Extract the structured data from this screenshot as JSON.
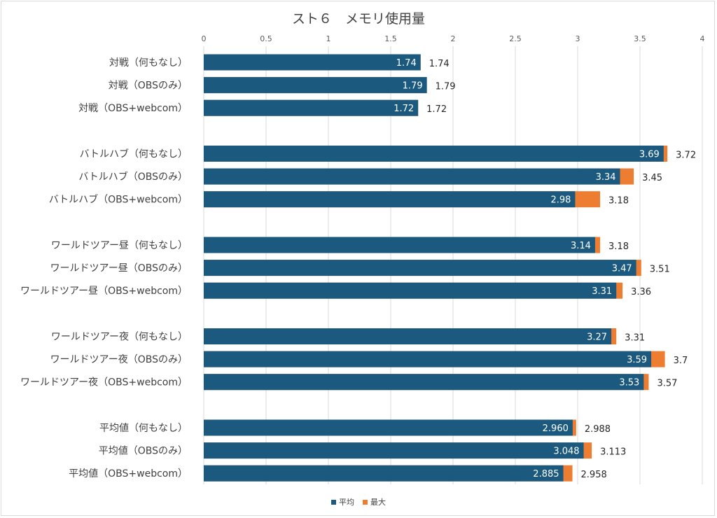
{
  "colors": {
    "avg": "#1b5a7e",
    "max": "#ed7d31",
    "grid": "#d9d9d9"
  },
  "chart_data": {
    "type": "bar",
    "orientation": "horizontal",
    "stacked": "overlay",
    "title": "スト６　メモリ使用量",
    "xlim": [
      0,
      4
    ],
    "x_ticks": [
      "0",
      "0.5",
      "1",
      "1.5",
      "2",
      "2.5",
      "3",
      "3.5",
      "4"
    ],
    "x_tick_values": [
      0,
      0.5,
      1,
      1.5,
      2,
      2.5,
      3,
      3.5,
      4
    ],
    "grid": true,
    "legend_position": "bottom",
    "categories": [
      "対戦（何もなし）",
      "対戦（OBSのみ）",
      "対戦（OBS+webcom）",
      "バトルハブ（何もなし）",
      "バトルハブ（OBSのみ）",
      "バトルハブ（OBS+webcom）",
      "ワールドツアー昼（何もなし）",
      "ワールドツアー昼（OBSのみ）",
      "ワールドツアー昼（OBS+webcom）",
      "ワールドツアー夜（何もなし）",
      "ワールドツアー夜（OBSのみ）",
      "ワールドツアー夜（OBS+webcom）",
      "平均値（何もなし）",
      "平均値（OBSのみ）",
      "平均値（OBS+webcom）"
    ],
    "series": [
      {
        "name": "平均",
        "values": [
          1.74,
          1.79,
          1.72,
          3.69,
          3.34,
          2.98,
          3.14,
          3.47,
          3.31,
          3.27,
          3.59,
          3.53,
          2.96,
          3.048,
          2.885
        ],
        "labels": [
          "1.74",
          "1.79",
          "1.72",
          "3.69",
          "3.34",
          "2.98",
          "3.14",
          "3.47",
          "3.31",
          "3.27",
          "3.59",
          "3.53",
          "2.960",
          "3.048",
          "2.885"
        ]
      },
      {
        "name": "最大",
        "values": [
          1.74,
          1.79,
          1.72,
          3.72,
          3.45,
          3.18,
          3.18,
          3.51,
          3.36,
          3.31,
          3.7,
          3.57,
          2.988,
          3.113,
          2.958
        ],
        "labels": [
          "1.74",
          "1.79",
          "1.72",
          "3.72",
          "3.45",
          "3.18",
          "3.18",
          "3.51",
          "3.36",
          "3.31",
          "3.7",
          "3.57",
          "2.988",
          "3.113",
          "2.958"
        ]
      }
    ]
  }
}
